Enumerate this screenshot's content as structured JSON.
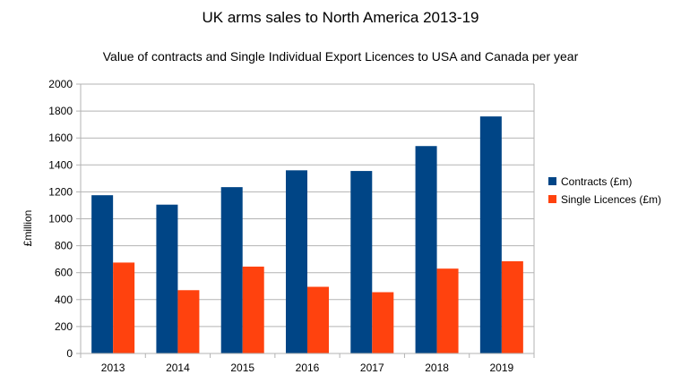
{
  "chart_data": {
    "type": "bar",
    "title": "UK arms sales to North America 2013-19",
    "subtitle": "Value of contracts and Single Individual Export Licences to USA and Canada per year",
    "ylabel": "£million",
    "xlabel": "",
    "ylim": [
      0,
      2000
    ],
    "yticks": [
      0,
      200,
      400,
      600,
      800,
      1000,
      1200,
      1400,
      1600,
      1800,
      2000
    ],
    "grid": true,
    "legend_position": "right",
    "categories": [
      "2013",
      "2014",
      "2015",
      "2016",
      "2017",
      "2018",
      "2019"
    ],
    "series": [
      {
        "name": "Contracts (£m)",
        "color": "#004586",
        "values": [
          1175,
          1105,
          1235,
          1360,
          1355,
          1540,
          1760
        ]
      },
      {
        "name": "Single Licences (£m)",
        "color": "#ff420e",
        "values": [
          675,
          470,
          645,
          495,
          455,
          630,
          685
        ]
      }
    ]
  }
}
